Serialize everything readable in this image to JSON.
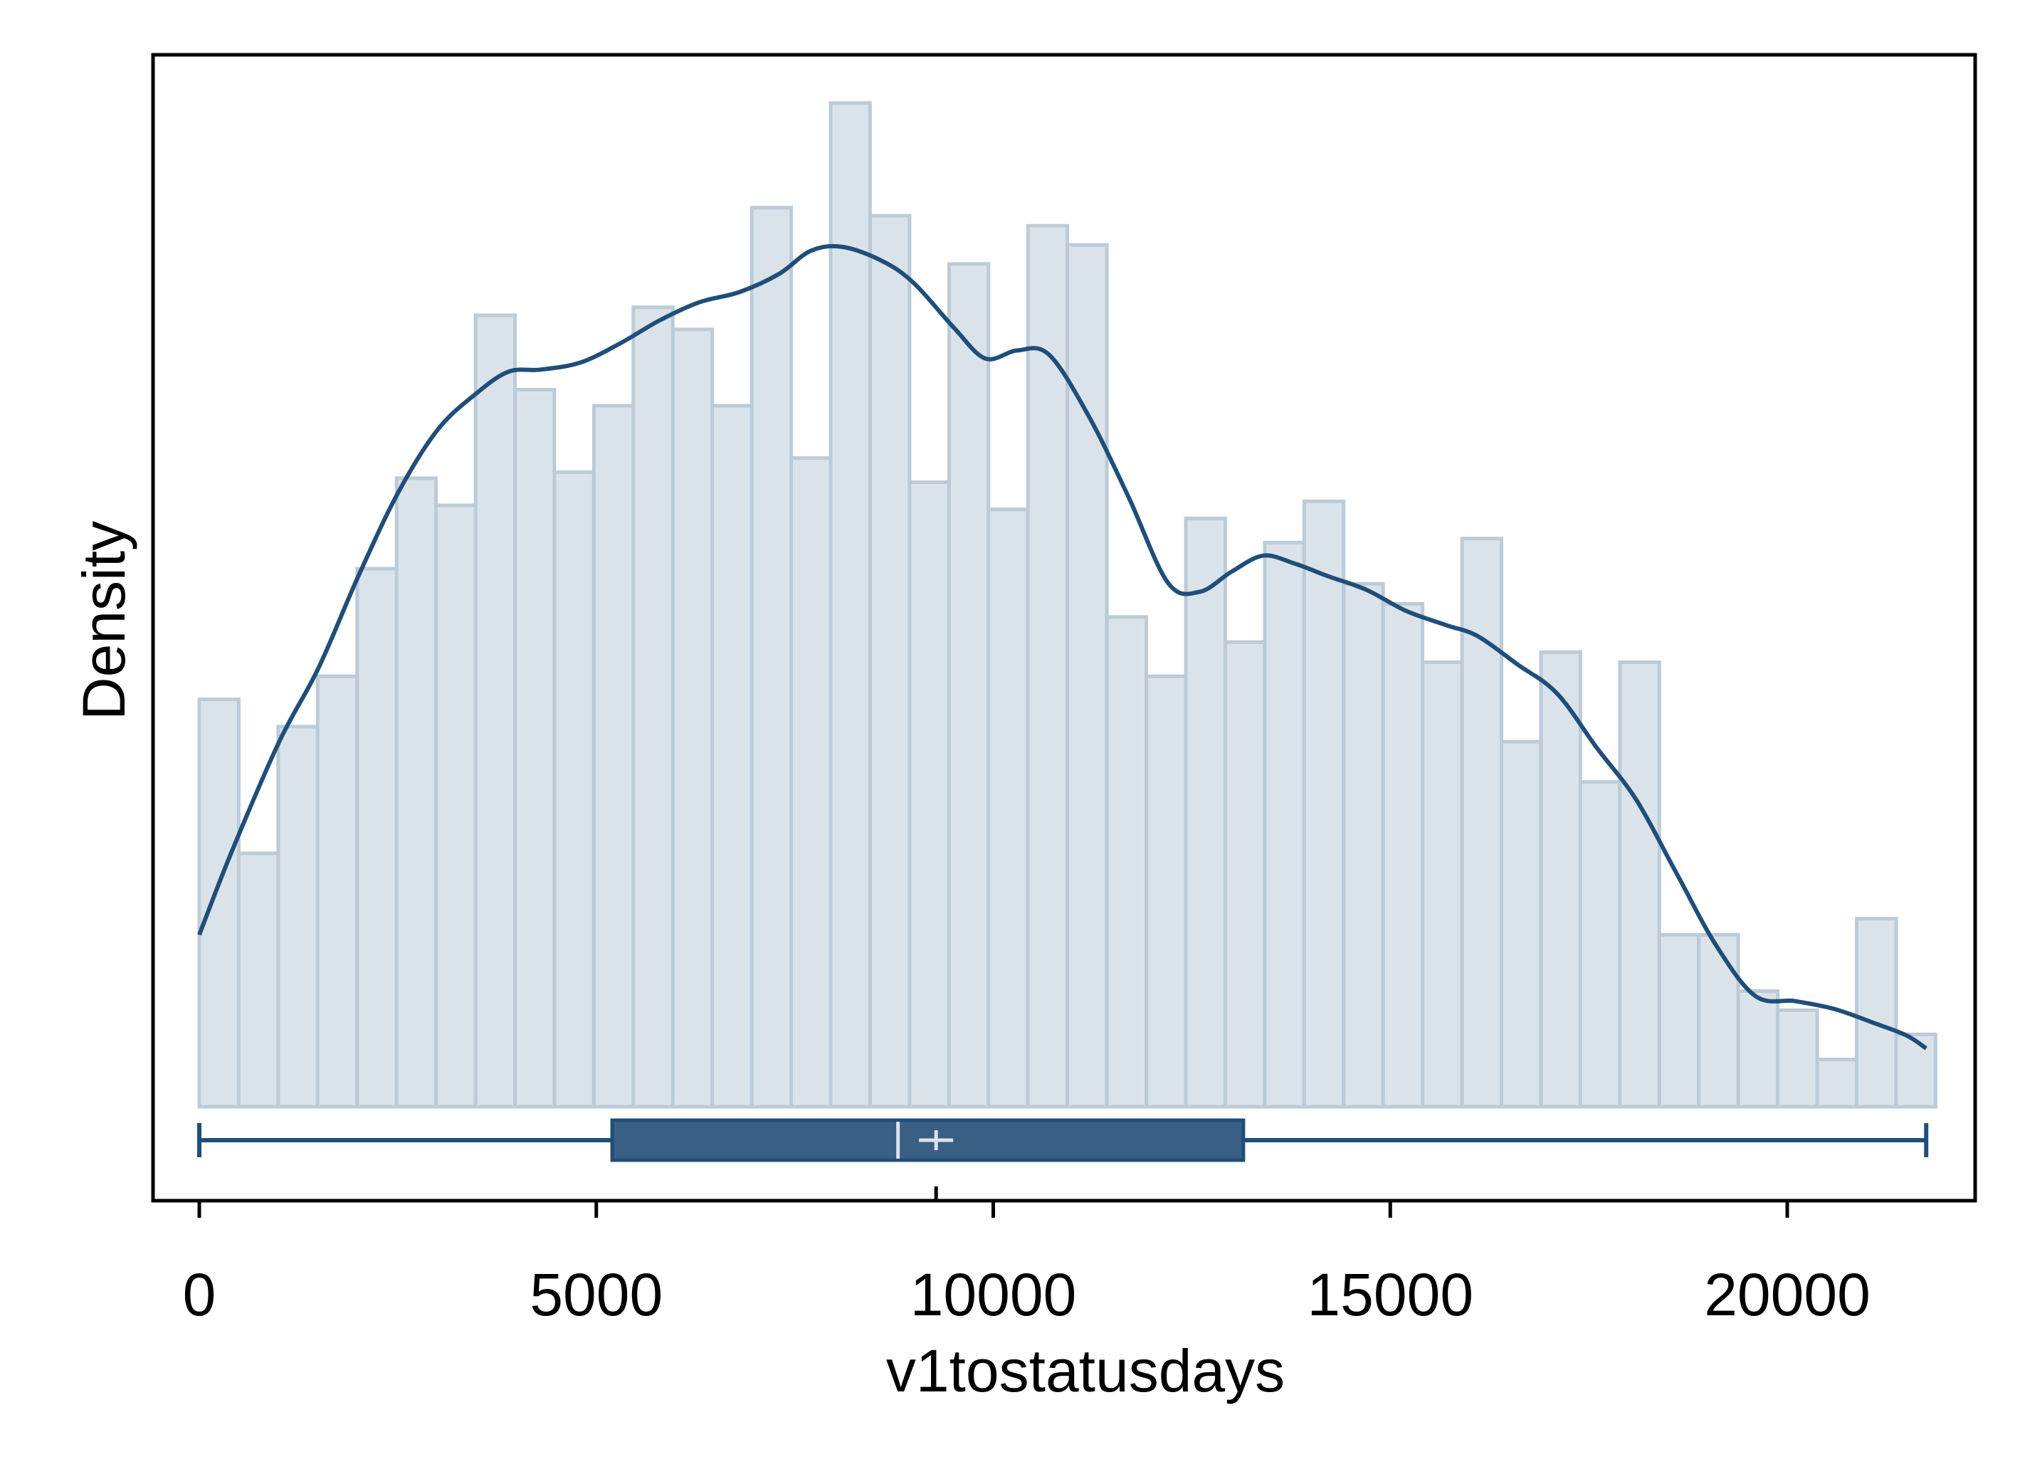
{
  "chart_data": {
    "type": "bar",
    "xlabel": "v1tostatusdays",
    "ylabel": "Density",
    "xlim": [
      -1000,
      22500
    ],
    "ylim": [
      0,
      1.0
    ],
    "x_ticks": [
      0,
      5000,
      10000,
      15000,
      20000
    ],
    "x_tick_labels": [
      "0",
      "5000",
      "10000",
      "15000",
      "20000"
    ],
    "y_ticks": [],
    "grid": false,
    "legend": "none",
    "colors": {
      "bar_fill": "#dbe3ea",
      "bar_edge": "#bccbd8",
      "kde_line": "#1f4e79",
      "box_fill": "#3a5f85",
      "box_edge": "#1f4e79",
      "whisker": "#1f4e79",
      "frame": "#000000"
    },
    "histogram": {
      "bin_start": 0,
      "bin_width": 497,
      "relative_heights": [
        0.405,
        0.252,
        0.378,
        0.428,
        0.535,
        0.625,
        0.598,
        0.787,
        0.713,
        0.631,
        0.697,
        0.795,
        0.773,
        0.697,
        0.894,
        0.645,
        0.998,
        0.886,
        0.621,
        0.838,
        0.594,
        0.876,
        0.857,
        0.487,
        0.428,
        0.585,
        0.462,
        0.561,
        0.602,
        0.52,
        0.5,
        0.442,
        0.565,
        0.363,
        0.452,
        0.323,
        0.442,
        0.171,
        0.171,
        0.115,
        0.096,
        0.047,
        0.187,
        0.072
      ]
    },
    "kde": {
      "x": [
        0,
        400,
        1000,
        1500,
        2000,
        2500,
        3000,
        3500,
        3900,
        4300,
        4800,
        5300,
        5800,
        6300,
        6800,
        7300,
        7700,
        8100,
        8600,
        9000,
        9500,
        9900,
        10300,
        10700,
        11200,
        11700,
        12200,
        12600,
        13000,
        13400,
        13800,
        14200,
        14700,
        15200,
        15700,
        16100,
        16600,
        17100,
        17600,
        18100,
        18600,
        19100,
        19600,
        20100,
        20600,
        21100,
        21500,
        21750
      ],
      "y": [
        0.171,
        0.252,
        0.362,
        0.436,
        0.527,
        0.61,
        0.673,
        0.71,
        0.731,
        0.733,
        0.74,
        0.759,
        0.782,
        0.8,
        0.81,
        0.828,
        0.851,
        0.855,
        0.841,
        0.819,
        0.775,
        0.744,
        0.752,
        0.748,
        0.687,
        0.607,
        0.521,
        0.512,
        0.532,
        0.548,
        0.54,
        0.528,
        0.514,
        0.493,
        0.479,
        0.468,
        0.44,
        0.411,
        0.357,
        0.305,
        0.233,
        0.161,
        0.11,
        0.105,
        0.097,
        0.083,
        0.071,
        0.058
      ]
    },
    "boxplot": {
      "min": 0,
      "q1": 5200,
      "median": 8800,
      "mean": 9280,
      "q3": 13150,
      "max": 21750
    }
  }
}
